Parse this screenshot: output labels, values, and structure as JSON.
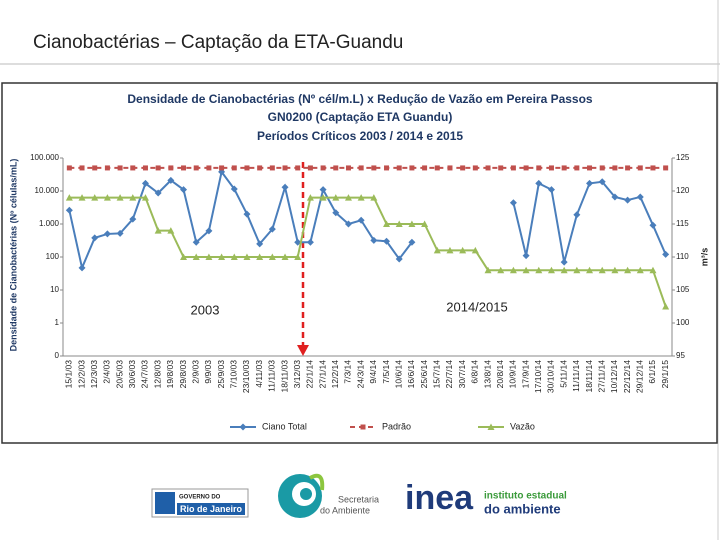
{
  "slide_title": "Cianobactérias – Captação da ETA-Guandu",
  "chart_data": {
    "type": "line",
    "title_lines": [
      "Densidade de Cianobactérias  (Nº cél/m.L) x Redução de Vazão em Pereira Passos",
      "GN0200 (Captação  ETA Guandu)",
      "Períodos Críticos  2003 / 2014 e 2015"
    ],
    "y_label": "Densidade de Cianobactérias (Nº células/mL)",
    "y2_label": "m³/s",
    "annotations": [
      "2003",
      "2014/2015"
    ],
    "categories": [
      "15/1/03",
      "12/2/03",
      "12/3/03",
      "2/4/03",
      "20/5/03",
      "30/6/03",
      "24/7/03",
      "12/8/03",
      "19/8/03",
      "29/8/03",
      "2/9/03",
      "9/9/03",
      "25/9/03",
      "7/10/03",
      "23/10/03",
      "4/11/03",
      "11/11/03",
      "18/11/03",
      "3/12/03",
      "22/1/14",
      "27/1/14",
      "12/2/14",
      "7/3/14",
      "24/3/14",
      "9/4/14",
      "7/5/14",
      "10/6/14",
      "16/6/14",
      "25/6/14",
      "15/7/14",
      "22/7/14",
      "30/7/14",
      "6/8/14",
      "13/8/14",
      "20/8/14",
      "10/9/14",
      "17/9/14",
      "17/10/14",
      "30/10/14",
      "5/11/14",
      "11/11/14",
      "18/11/14",
      "27/11/14",
      "10/12/14",
      "22/12/14",
      "29/12/14",
      "6/1/15",
      "29/1/15"
    ],
    "series": [
      {
        "name": "Ciano Total",
        "color": "#4a7ebb",
        "marker": "diamond",
        "values": [
          2600,
          47,
          380,
          500,
          520,
          1400,
          17000,
          8700,
          21000,
          11000,
          280,
          620,
          38000,
          11500,
          2000,
          250,
          700,
          13000,
          280,
          280,
          11000,
          2200,
          1000,
          1300,
          320,
          300,
          87,
          280,
          null,
          null,
          null,
          null,
          null,
          null,
          null,
          4400,
          110,
          17000,
          11000,
          70,
          1900,
          17000,
          19000,
          6600,
          5300,
          6600,
          920,
          120
        ]
      },
      {
        "name": "Padrão",
        "color": "#c0504d",
        "marker": "square",
        "dashed": true,
        "values": [
          50000,
          50000,
          50000,
          50000,
          50000,
          50000,
          50000,
          50000,
          50000,
          50000,
          50000,
          50000,
          50000,
          50000,
          50000,
          50000,
          50000,
          50000,
          50000,
          50000,
          50000,
          50000,
          50000,
          50000,
          50000,
          50000,
          50000,
          50000,
          50000,
          50000,
          50000,
          50000,
          50000,
          50000,
          50000,
          50000,
          50000,
          50000,
          50000,
          50000,
          50000,
          50000,
          50000,
          50000,
          50000,
          50000,
          50000,
          50000
        ]
      },
      {
        "name": "Vazão",
        "color": "#9bbb59",
        "marker": "triangle",
        "axis": "y2",
        "values": [
          119,
          119,
          119,
          119,
          119,
          119,
          119,
          114,
          114,
          110,
          110,
          110,
          110,
          110,
          110,
          110,
          110,
          110,
          110,
          119,
          119,
          119,
          119,
          119,
          119,
          115,
          115,
          115,
          115,
          111,
          111,
          111,
          111,
          108,
          108,
          108,
          108,
          108,
          108,
          108,
          108,
          108,
          108,
          108,
          108,
          108,
          108,
          102.5
        ]
      }
    ],
    "ylog": true,
    "ylim": [
      0.1,
      100000
    ],
    "yticks": [
      {
        "value": 0.1,
        "label": "0"
      },
      1,
      10,
      100,
      {
        "value": 1000,
        "label": "1.000"
      },
      {
        "value": 10000,
        "label": "10.000"
      },
      {
        "value": 100000,
        "label": "100.000"
      }
    ],
    "y2lim": [
      95,
      125
    ],
    "y2ticks": [
      95,
      100,
      105,
      110,
      115,
      120,
      125
    ],
    "grid": false,
    "legend": "bottom"
  },
  "logos": {
    "gov_top": "GOVERNO DO",
    "gov_name": "Rio de Janeiro",
    "sea_1": "Secretaria",
    "sea_2": "do Ambiente",
    "inea": "inea",
    "inea_1": "instituto estadual",
    "inea_2": "do ambiente"
  }
}
